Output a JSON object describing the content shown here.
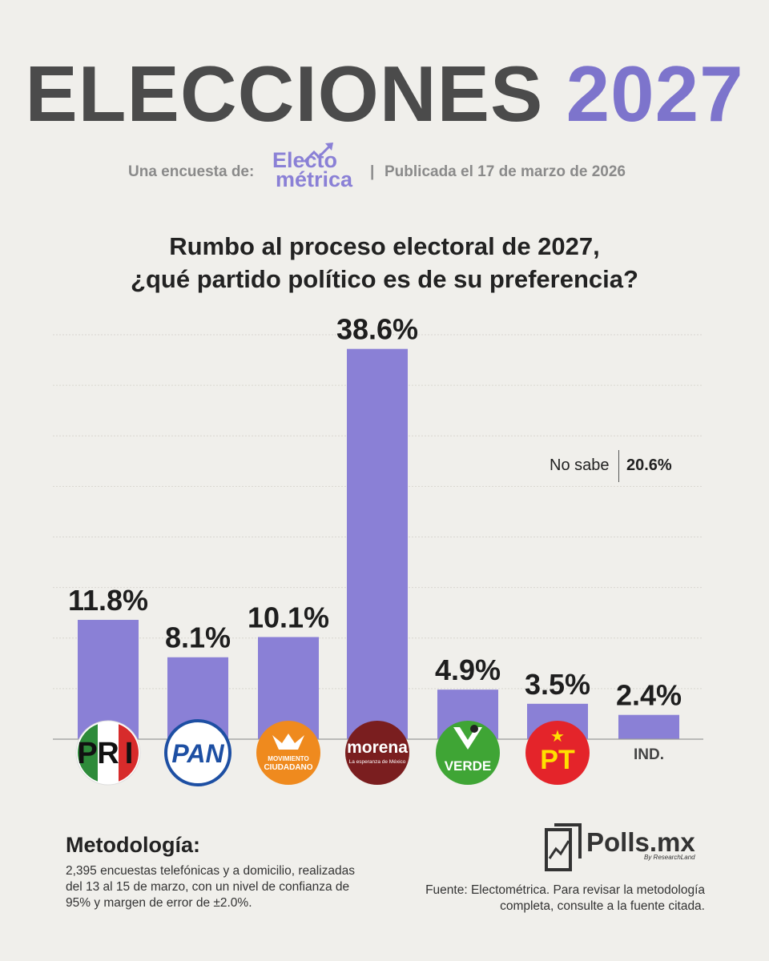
{
  "header": {
    "title_main": "ELECCIONES",
    "title_year": "2027",
    "survey_by": "Una encuesta de:",
    "brand_line1": "Electo",
    "brand_line2": "métrica",
    "separator": "|",
    "published": "Publicada el 17 de marzo de 2026"
  },
  "question": {
    "line1": "Rumbo al proceso electoral de 2027,",
    "line2": "¿qué partido político es de su preferencia?"
  },
  "chart_data": {
    "type": "bar",
    "categories": [
      "PRI",
      "PAN",
      "MOVIMIENTO CIUDADANO",
      "morena",
      "VERDE",
      "PT",
      "IND."
    ],
    "values": [
      11.8,
      8.1,
      10.1,
      38.6,
      4.9,
      3.5,
      2.4
    ],
    "value_labels": [
      "11.8%",
      "8.1%",
      "10.1%",
      "38.6%",
      "4.9%",
      "3.5%",
      "2.4%"
    ],
    "ylim": [
      0,
      40
    ],
    "grid": true,
    "bar_color": "#8a80d6",
    "title": "",
    "xlabel": "",
    "ylabel": ""
  },
  "logos": {
    "pri": {
      "letters": [
        "P",
        "R",
        "I"
      ],
      "colors": [
        "#2e8b3a",
        "#ffffff",
        "#d72b2b"
      ]
    },
    "pan": {
      "text": "PAN",
      "color": "#1d4fa3"
    },
    "mc": {
      "line1": "MOVIMIENTO",
      "line2": "CIUDADANO",
      "color": "#ef8a1e"
    },
    "morena": {
      "name": "morena",
      "slogan": "La esperanza de México",
      "color": "#7a1e1f"
    },
    "verde": {
      "letter": "V",
      "text": "VERDE",
      "color": "#3fa535"
    },
    "pt": {
      "text": "PT",
      "star": "★",
      "color": "#e4242a",
      "star_color": "#ffe000"
    },
    "ind": {
      "text": "IND."
    }
  },
  "undecided": {
    "label": "No sabe",
    "value": "20.6%"
  },
  "methodology": {
    "title": "Metodología:",
    "text": "2,395 encuestas telefónicas y a domicilio, realizadas del 13 al 15 de marzo, con un nivel de confianza de 95% y margen de error de ±2.0%."
  },
  "source": "Fuente: Electométrica. Para revisar la metodología completa, consulte a la fuente citada.",
  "footer_logo": {
    "name": "Polls.mx",
    "sub": "By ResearchLand"
  }
}
